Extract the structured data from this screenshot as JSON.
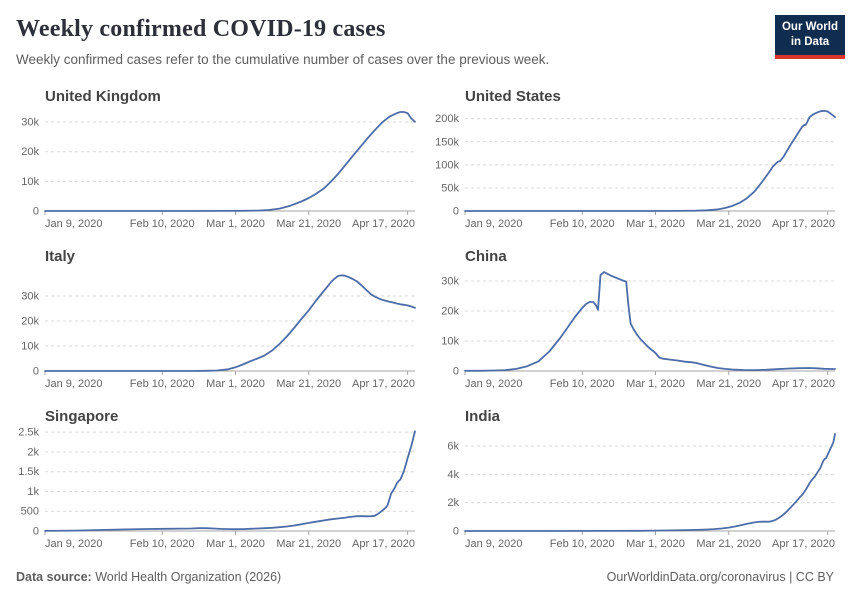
{
  "header": {
    "title": "Weekly confirmed COVID-19 cases",
    "subtitle": "Weekly confirmed cases refer to the cumulative number of cases over the previous week.",
    "logo": {
      "line1": "Our World",
      "line2": "in Data"
    }
  },
  "colors": {
    "line": "#4d6da8",
    "grid": "#d9d9d9",
    "axis": "#a6a6a6",
    "tick_label": "#666666",
    "panel_title": "#444444",
    "logo_navy": "#102d50",
    "logo_red": "#dc352b"
  },
  "footer": {
    "source_label": "Data source:",
    "source_value": "World Health Organization (2026)",
    "credit": "OurWorldinData.org/coronavirus | CC BY"
  },
  "chart_data": [
    {
      "type": "line",
      "title": "United Kingdom",
      "x_domain_days": [
        0,
        101
      ],
      "x_ticks": [
        {
          "day": 0,
          "label": "Jan 9, 2020"
        },
        {
          "day": 32,
          "label": "Feb 10, 2020"
        },
        {
          "day": 52,
          "label": "Mar 1, 2020"
        },
        {
          "day": 72,
          "label": "Mar 21, 2020"
        },
        {
          "day": 99,
          "label": "Apr 17, 2020"
        }
      ],
      "y_max": 34400,
      "y_ticks": [
        {
          "v": 0,
          "label": "0"
        },
        {
          "v": 10000,
          "label": "10k"
        },
        {
          "v": 20000,
          "label": "20k"
        },
        {
          "v": 30000,
          "label": "30k"
        }
      ],
      "points": [
        [
          0,
          0
        ],
        [
          10,
          0
        ],
        [
          20,
          0
        ],
        [
          30,
          0
        ],
        [
          40,
          5
        ],
        [
          48,
          20
        ],
        [
          54,
          60
        ],
        [
          58,
          150
        ],
        [
          61,
          350
        ],
        [
          64,
          800
        ],
        [
          67,
          1800
        ],
        [
          70,
          3200
        ],
        [
          72,
          4400
        ],
        [
          74,
          5800
        ],
        [
          76,
          7500
        ],
        [
          78,
          9800
        ],
        [
          80,
          12500
        ],
        [
          82,
          15500
        ],
        [
          84,
          18500
        ],
        [
          86,
          21500
        ],
        [
          88,
          24500
        ],
        [
          90,
          27200
        ],
        [
          92,
          29800
        ],
        [
          94,
          31800
        ],
        [
          96,
          33000
        ],
        [
          97,
          33400
        ],
        [
          98,
          33400
        ],
        [
          99,
          33000
        ],
        [
          100,
          31200
        ],
        [
          101,
          30100
        ]
      ]
    },
    {
      "type": "line",
      "title": "United States",
      "x_domain_days": [
        0,
        101
      ],
      "x_ticks": [
        {
          "day": 0,
          "label": "Jan 9, 2020"
        },
        {
          "day": 32,
          "label": "Feb 10, 2020"
        },
        {
          "day": 52,
          "label": "Mar 1, 2020"
        },
        {
          "day": 72,
          "label": "Mar 21, 2020"
        },
        {
          "day": 99,
          "label": "Apr 17, 2020"
        }
      ],
      "y_max": 221000,
      "y_ticks": [
        {
          "v": 0,
          "label": "0"
        },
        {
          "v": 50000,
          "label": "50k"
        },
        {
          "v": 100000,
          "label": "100k"
        },
        {
          "v": 150000,
          "label": "150k"
        },
        {
          "v": 200000,
          "label": "200k"
        }
      ],
      "points": [
        [
          0,
          0
        ],
        [
          20,
          0
        ],
        [
          40,
          20
        ],
        [
          50,
          60
        ],
        [
          58,
          250
        ],
        [
          63,
          700
        ],
        [
          66,
          1500
        ],
        [
          69,
          3500
        ],
        [
          71,
          6500
        ],
        [
          73,
          11000
        ],
        [
          75,
          18000
        ],
        [
          77,
          28000
        ],
        [
          79,
          42000
        ],
        [
          81,
          62000
        ],
        [
          83,
          84000
        ],
        [
          84,
          96000
        ],
        [
          85,
          104000
        ],
        [
          85.5,
          107000
        ],
        [
          86,
          108000
        ],
        [
          87,
          118000
        ],
        [
          88,
          132000
        ],
        [
          89,
          145000
        ],
        [
          90,
          157000
        ],
        [
          91,
          170000
        ],
        [
          92,
          182000
        ],
        [
          92.5,
          186000
        ],
        [
          93,
          186500
        ],
        [
          93.5,
          194000
        ],
        [
          94,
          203000
        ],
        [
          95,
          209000
        ],
        [
          96,
          213000
        ],
        [
          97,
          216000
        ],
        [
          98,
          217000
        ],
        [
          99,
          215500
        ],
        [
          100,
          210000
        ],
        [
          101,
          203500
        ]
      ]
    },
    {
      "type": "line",
      "title": "Italy",
      "x_domain_days": [
        0,
        101
      ],
      "x_ticks": [
        {
          "day": 0,
          "label": "Jan 9, 2020"
        },
        {
          "day": 32,
          "label": "Feb 10, 2020"
        },
        {
          "day": 52,
          "label": "Mar 1, 2020"
        },
        {
          "day": 72,
          "label": "Mar 21, 2020"
        },
        {
          "day": 99,
          "label": "Apr 17, 2020"
        }
      ],
      "y_max": 40800,
      "y_ticks": [
        {
          "v": 0,
          "label": "0"
        },
        {
          "v": 10000,
          "label": "10k"
        },
        {
          "v": 20000,
          "label": "20k"
        },
        {
          "v": 30000,
          "label": "30k"
        }
      ],
      "points": [
        [
          0,
          0
        ],
        [
          20,
          0
        ],
        [
          40,
          10
        ],
        [
          44,
          60
        ],
        [
          47,
          200
        ],
        [
          50,
          700
        ],
        [
          52,
          1500
        ],
        [
          54,
          2600
        ],
        [
          56,
          3900
        ],
        [
          58,
          5000
        ],
        [
          60,
          6300
        ],
        [
          62,
          8200
        ],
        [
          64,
          10800
        ],
        [
          66,
          13800
        ],
        [
          68,
          17200
        ],
        [
          70,
          20800
        ],
        [
          72,
          24300
        ],
        [
          74,
          28200
        ],
        [
          76,
          31800
        ],
        [
          77,
          33600
        ],
        [
          78,
          35400
        ],
        [
          79,
          36900
        ],
        [
          80,
          38000
        ],
        [
          81,
          38300
        ],
        [
          82,
          38100
        ],
        [
          83,
          37500
        ],
        [
          84,
          36800
        ],
        [
          85,
          36000
        ],
        [
          86,
          34800
        ],
        [
          87,
          33400
        ],
        [
          88,
          32000
        ],
        [
          89,
          30700
        ],
        [
          90,
          29800
        ],
        [
          91,
          29100
        ],
        [
          92,
          28500
        ],
        [
          93,
          28100
        ],
        [
          94,
          27700
        ],
        [
          95,
          27400
        ],
        [
          96,
          27000
        ],
        [
          97,
          26700
        ],
        [
          98,
          26500
        ],
        [
          99,
          26200
        ],
        [
          100,
          25800
        ],
        [
          101,
          25300
        ]
      ]
    },
    {
      "type": "line",
      "title": "China",
      "x_domain_days": [
        0,
        101
      ],
      "x_ticks": [
        {
          "day": 0,
          "label": "Jan 9, 2020"
        },
        {
          "day": 32,
          "label": "Feb 10, 2020"
        },
        {
          "day": 52,
          "label": "Mar 1, 2020"
        },
        {
          "day": 72,
          "label": "Mar 21, 2020"
        },
        {
          "day": 99,
          "label": "Apr 17, 2020"
        }
      ],
      "y_max": 34000,
      "y_ticks": [
        {
          "v": 0,
          "label": "0"
        },
        {
          "v": 10000,
          "label": "10k"
        },
        {
          "v": 20000,
          "label": "20k"
        },
        {
          "v": 30000,
          "label": "30k"
        }
      ],
      "points": [
        [
          0,
          60
        ],
        [
          4,
          80
        ],
        [
          8,
          150
        ],
        [
          11,
          300
        ],
        [
          14,
          700
        ],
        [
          17,
          1600
        ],
        [
          20,
          3200
        ],
        [
          23,
          6500
        ],
        [
          26,
          11000
        ],
        [
          28,
          14500
        ],
        [
          30,
          18000
        ],
        [
          32,
          21000
        ],
        [
          33,
          22300
        ],
        [
          34,
          23000
        ],
        [
          35,
          23000
        ],
        [
          35.7,
          22000
        ],
        [
          36.3,
          20400
        ],
        [
          37,
          32000
        ],
        [
          38,
          33000
        ],
        [
          39,
          32300
        ],
        [
          40,
          31700
        ],
        [
          41,
          31200
        ],
        [
          42,
          30700
        ],
        [
          43,
          30200
        ],
        [
          44,
          29800
        ],
        [
          44.6,
          22000
        ],
        [
          45.2,
          15800
        ],
        [
          46,
          14000
        ],
        [
          47,
          12000
        ],
        [
          48,
          10500
        ],
        [
          50,
          8000
        ],
        [
          52,
          6000
        ],
        [
          53,
          4500
        ],
        [
          54,
          4100
        ],
        [
          56,
          3800
        ],
        [
          58,
          3500
        ],
        [
          60,
          3100
        ],
        [
          62,
          2900
        ],
        [
          63,
          2700
        ],
        [
          65,
          2100
        ],
        [
          67,
          1500
        ],
        [
          69,
          1000
        ],
        [
          71,
          700
        ],
        [
          73,
          500
        ],
        [
          76,
          350
        ],
        [
          79,
          300
        ],
        [
          82,
          400
        ],
        [
          85,
          600
        ],
        [
          88,
          800
        ],
        [
          91,
          950
        ],
        [
          94,
          1000
        ],
        [
          96,
          900
        ],
        [
          98,
          750
        ],
        [
          100,
          650
        ],
        [
          101,
          650
        ]
      ]
    },
    {
      "type": "line",
      "title": "Singapore",
      "x_domain_days": [
        0,
        101
      ],
      "x_ticks": [
        {
          "day": 0,
          "label": "Jan 9, 2020"
        },
        {
          "day": 32,
          "label": "Feb 10, 2020"
        },
        {
          "day": 52,
          "label": "Mar 1, 2020"
        },
        {
          "day": 72,
          "label": "Mar 21, 2020"
        },
        {
          "day": 99,
          "label": "Apr 17, 2020"
        }
      ],
      "y_max": 2580,
      "y_ticks": [
        {
          "v": 0,
          "label": "0"
        },
        {
          "v": 500,
          "label": "500"
        },
        {
          "v": 1000,
          "label": "1k"
        },
        {
          "v": 1500,
          "label": "1.5k"
        },
        {
          "v": 2000,
          "label": "2k"
        },
        {
          "v": 2500,
          "label": "2.5k"
        }
      ],
      "points": [
        [
          0,
          2
        ],
        [
          8,
          10
        ],
        [
          15,
          25
        ],
        [
          22,
          40
        ],
        [
          28,
          50
        ],
        [
          33,
          55
        ],
        [
          37,
          60
        ],
        [
          40,
          62
        ],
        [
          42,
          70
        ],
        [
          44,
          72
        ],
        [
          46,
          62
        ],
        [
          48,
          52
        ],
        [
          50,
          47
        ],
        [
          52,
          45
        ],
        [
          54,
          48
        ],
        [
          56,
          55
        ],
        [
          58,
          62
        ],
        [
          60,
          70
        ],
        [
          62,
          80
        ],
        [
          64,
          95
        ],
        [
          66,
          115
        ],
        [
          68,
          140
        ],
        [
          70,
          170
        ],
        [
          72,
          205
        ],
        [
          74,
          235
        ],
        [
          76,
          265
        ],
        [
          78,
          295
        ],
        [
          80,
          315
        ],
        [
          82,
          340
        ],
        [
          83,
          355
        ],
        [
          84,
          365
        ],
        [
          85,
          375
        ],
        [
          86,
          378
        ],
        [
          87,
          375
        ],
        [
          88,
          372
        ],
        [
          89,
          375
        ],
        [
          90,
          385
        ],
        [
          91,
          440
        ],
        [
          92,
          510
        ],
        [
          93,
          590
        ],
        [
          93.5,
          650
        ],
        [
          94,
          800
        ],
        [
          94.5,
          950
        ],
        [
          95,
          1020
        ],
        [
          95.5,
          1100
        ],
        [
          96,
          1200
        ],
        [
          96.5,
          1260
        ],
        [
          97,
          1300
        ],
        [
          98,
          1520
        ],
        [
          99,
          1850
        ],
        [
          100,
          2150
        ],
        [
          101,
          2520
        ]
      ]
    },
    {
      "type": "line",
      "title": "India",
      "x_domain_days": [
        0,
        101
      ],
      "x_ticks": [
        {
          "day": 0,
          "label": "Jan 9, 2020"
        },
        {
          "day": 32,
          "label": "Feb 10, 2020"
        },
        {
          "day": 52,
          "label": "Mar 1, 2020"
        },
        {
          "day": 72,
          "label": "Mar 21, 2020"
        },
        {
          "day": 99,
          "label": "Apr 17, 2020"
        }
      ],
      "y_max": 7200,
      "y_ticks": [
        {
          "v": 0,
          "label": "0"
        },
        {
          "v": 2000,
          "label": "2k"
        },
        {
          "v": 4000,
          "label": "4k"
        },
        {
          "v": 6000,
          "label": "6k"
        }
      ],
      "points": [
        [
          0,
          0
        ],
        [
          20,
          0
        ],
        [
          40,
          5
        ],
        [
          48,
          15
        ],
        [
          52,
          25
        ],
        [
          56,
          40
        ],
        [
          60,
          55
        ],
        [
          63,
          75
        ],
        [
          66,
          105
        ],
        [
          68,
          135
        ],
        [
          70,
          175
        ],
        [
          72,
          240
        ],
        [
          74,
          340
        ],
        [
          76,
          450
        ],
        [
          77,
          510
        ],
        [
          78,
          560
        ],
        [
          79,
          610
        ],
        [
          80,
          640
        ],
        [
          81,
          660
        ],
        [
          82,
          665
        ],
        [
          83,
          660
        ],
        [
          84,
          710
        ],
        [
          85,
          820
        ],
        [
          86,
          980
        ],
        [
          87,
          1180
        ],
        [
          88,
          1420
        ],
        [
          89,
          1680
        ],
        [
          90,
          1960
        ],
        [
          91,
          2260
        ],
        [
          91.5,
          2420
        ],
        [
          92,
          2520
        ],
        [
          92.6,
          2750
        ],
        [
          93,
          2900
        ],
        [
          93.4,
          3080
        ],
        [
          94,
          3350
        ],
        [
          94.5,
          3550
        ],
        [
          95,
          3700
        ],
        [
          95.5,
          3850
        ],
        [
          96,
          4050
        ],
        [
          96.5,
          4250
        ],
        [
          97,
          4450
        ],
        [
          97.4,
          4700
        ],
        [
          97.8,
          4950
        ],
        [
          98.2,
          5080
        ],
        [
          98.6,
          5150
        ],
        [
          99,
          5400
        ],
        [
          99.4,
          5600
        ],
        [
          99.8,
          5850
        ],
        [
          100.2,
          6050
        ],
        [
          100.6,
          6300
        ],
        [
          101,
          6850
        ]
      ]
    }
  ]
}
